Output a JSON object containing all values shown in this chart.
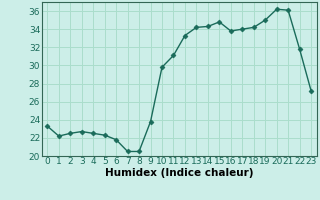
{
  "x": [
    0,
    1,
    2,
    3,
    4,
    5,
    6,
    7,
    8,
    9,
    10,
    11,
    12,
    13,
    14,
    15,
    16,
    17,
    18,
    19,
    20,
    21,
    22,
    23
  ],
  "y": [
    23.3,
    22.2,
    22.5,
    22.7,
    22.5,
    22.3,
    21.8,
    20.5,
    20.5,
    23.8,
    29.8,
    31.1,
    33.3,
    34.2,
    34.3,
    34.8,
    33.8,
    34.0,
    34.2,
    35.0,
    36.2,
    36.1,
    31.8,
    27.2
  ],
  "line_color": "#1a6b5a",
  "marker": "D",
  "marker_size": 2.5,
  "bg_color": "#cceee8",
  "grid_color": "#aaddcc",
  "xlabel": "Humidex (Indice chaleur)",
  "ylim": [
    20,
    37
  ],
  "xlim": [
    -0.5,
    23.5
  ],
  "yticks": [
    20,
    22,
    24,
    26,
    28,
    30,
    32,
    34,
    36
  ],
  "xticks": [
    0,
    1,
    2,
    3,
    4,
    5,
    6,
    7,
    8,
    9,
    10,
    11,
    12,
    13,
    14,
    15,
    16,
    17,
    18,
    19,
    20,
    21,
    22,
    23
  ],
  "xtick_labels": [
    "0",
    "1",
    "2",
    "3",
    "4",
    "5",
    "6",
    "7",
    "8",
    "9",
    "10",
    "11",
    "12",
    "13",
    "14",
    "15",
    "16",
    "17",
    "18",
    "19",
    "20",
    "21",
    "22",
    "23"
  ],
  "tick_fontsize": 6.5,
  "xlabel_fontsize": 7.5,
  "linewidth": 1.0,
  "spine_color": "#336655"
}
